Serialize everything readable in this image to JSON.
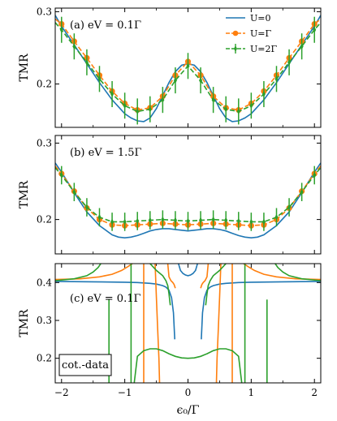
{
  "chart_data": [
    {
      "type": "line",
      "panel_label": "(a) eV = 0.1Γ",
      "ylabel": "TMR",
      "xlim": [
        -2.1,
        2.1
      ],
      "ylim": [
        0.14,
        0.305
      ],
      "yticks": [
        0.2,
        0.3
      ],
      "xticks": [
        -2,
        -1,
        0,
        1,
        2
      ],
      "legend": {
        "placement": "top-right"
      },
      "series": [
        {
          "name": "U=0",
          "color": "#1f77b4",
          "style": "solid",
          "x": [
            -2.1,
            -2.0,
            -1.8,
            -1.6,
            -1.4,
            -1.2,
            -1.0,
            -0.9,
            -0.8,
            -0.7,
            -0.6,
            -0.5,
            -0.4,
            -0.3,
            -0.2,
            -0.1,
            0.0,
            0.1,
            0.2,
            0.3,
            0.4,
            0.5,
            0.6,
            0.7,
            0.8,
            0.9,
            1.0,
            1.2,
            1.4,
            1.6,
            1.8,
            2.0,
            2.1
          ],
          "y": [
            0.295,
            0.28,
            0.254,
            0.228,
            0.202,
            0.178,
            0.159,
            0.153,
            0.149,
            0.148,
            0.153,
            0.166,
            0.184,
            0.202,
            0.217,
            0.226,
            0.228,
            0.226,
            0.217,
            0.202,
            0.184,
            0.166,
            0.153,
            0.148,
            0.149,
            0.153,
            0.159,
            0.178,
            0.202,
            0.228,
            0.254,
            0.28,
            0.295
          ]
        },
        {
          "name": "U=Γ",
          "color": "#ff7f0e",
          "style": "dashed",
          "marker": "circle",
          "x": [
            -2.1,
            -2.0,
            -1.8,
            -1.6,
            -1.4,
            -1.2,
            -1.0,
            -0.8,
            -0.6,
            -0.4,
            -0.2,
            0.0,
            0.2,
            0.4,
            0.6,
            0.8,
            1.0,
            1.2,
            1.4,
            1.6,
            1.8,
            2.0,
            2.1
          ],
          "y": [
            0.29,
            0.283,
            0.259,
            0.236,
            0.212,
            0.19,
            0.173,
            0.164,
            0.167,
            0.183,
            0.212,
            0.231,
            0.212,
            0.183,
            0.167,
            0.164,
            0.173,
            0.19,
            0.212,
            0.236,
            0.259,
            0.283,
            0.29
          ],
          "markers_x": [
            -2.0,
            -1.8,
            -1.6,
            -1.4,
            -1.2,
            -1.0,
            -0.8,
            -0.6,
            -0.4,
            -0.2,
            0.0,
            0.2,
            0.4,
            0.6,
            0.8,
            1.0,
            1.2,
            1.4,
            1.6,
            1.8,
            2.0
          ],
          "err": 0.004
        },
        {
          "name": "U=2Γ",
          "color": "#2ca02c",
          "style": "dashed",
          "marker": "plus",
          "x": [
            -2.1,
            -2.0,
            -1.8,
            -1.6,
            -1.4,
            -1.2,
            -1.0,
            -0.8,
            -0.6,
            -0.4,
            -0.2,
            0.0,
            0.2,
            0.4,
            0.6,
            0.8,
            1.0,
            1.2,
            1.4,
            1.6,
            1.8,
            2.0,
            2.1
          ],
          "y": [
            0.285,
            0.275,
            0.252,
            0.23,
            0.207,
            0.186,
            0.17,
            0.162,
            0.165,
            0.178,
            0.205,
            0.225,
            0.205,
            0.178,
            0.165,
            0.162,
            0.17,
            0.186,
            0.207,
            0.23,
            0.252,
            0.275,
            0.285
          ],
          "markers_x": [
            -2.0,
            -1.8,
            -1.6,
            -1.4,
            -1.2,
            -1.0,
            -0.8,
            -0.6,
            -0.4,
            -0.2,
            0.0,
            0.2,
            0.4,
            0.6,
            0.8,
            1.0,
            1.2,
            1.4,
            1.6,
            1.8,
            2.0
          ],
          "err": 0.018
        }
      ]
    },
    {
      "type": "line",
      "panel_label": "(b) eV = 1.5Γ",
      "ylabel": "TMR",
      "xlim": [
        -2.1,
        2.1
      ],
      "ylim": [
        0.155,
        0.31
      ],
      "yticks": [
        0.2,
        0.3
      ],
      "xticks": [
        -2,
        -1,
        0,
        1,
        2
      ],
      "series": [
        {
          "name": "U=0",
          "color": "#1f77b4",
          "style": "solid",
          "x": [
            -2.1,
            -2.0,
            -1.8,
            -1.6,
            -1.4,
            -1.2,
            -1.1,
            -1.0,
            -0.9,
            -0.8,
            -0.7,
            -0.6,
            -0.5,
            -0.4,
            -0.3,
            -0.2,
            -0.1,
            0.0,
            0.1,
            0.2,
            0.3,
            0.4,
            0.5,
            0.6,
            0.7,
            0.8,
            0.9,
            1.0,
            1.1,
            1.2,
            1.4,
            1.6,
            1.8,
            2.0,
            2.1
          ],
          "y": [
            0.274,
            0.262,
            0.235,
            0.21,
            0.192,
            0.18,
            0.177,
            0.176,
            0.177,
            0.179,
            0.182,
            0.185,
            0.187,
            0.188,
            0.188,
            0.187,
            0.186,
            0.185,
            0.186,
            0.187,
            0.188,
            0.188,
            0.187,
            0.185,
            0.182,
            0.179,
            0.177,
            0.176,
            0.177,
            0.18,
            0.192,
            0.21,
            0.235,
            0.262,
            0.274
          ]
        },
        {
          "name": "U=Γ",
          "color": "#ff7f0e",
          "style": "dashed",
          "marker": "circle",
          "x": [
            -2.1,
            -2.0,
            -1.8,
            -1.6,
            -1.4,
            -1.2,
            -1.0,
            -0.8,
            -0.6,
            -0.4,
            -0.2,
            0.0,
            0.2,
            0.4,
            0.6,
            0.8,
            1.0,
            1.2,
            1.4,
            1.6,
            1.8,
            2.0,
            2.1
          ],
          "y": [
            0.27,
            0.26,
            0.237,
            0.215,
            0.2,
            0.193,
            0.192,
            0.193,
            0.194,
            0.195,
            0.194,
            0.193,
            0.194,
            0.195,
            0.194,
            0.193,
            0.192,
            0.193,
            0.2,
            0.215,
            0.237,
            0.26,
            0.27
          ],
          "markers_x": [
            -2.0,
            -1.8,
            -1.6,
            -1.4,
            -1.2,
            -1.0,
            -0.8,
            -0.6,
            -0.4,
            -0.2,
            0.0,
            0.2,
            0.4,
            0.6,
            0.8,
            1.0,
            1.2,
            1.4,
            1.6,
            1.8,
            2.0
          ],
          "err": 0.004
        },
        {
          "name": "U=2Γ",
          "color": "#2ca02c",
          "style": "dashed",
          "marker": "plus",
          "x": [
            -2.1,
            -2.0,
            -1.8,
            -1.6,
            -1.4,
            -1.2,
            -1.0,
            -0.8,
            -0.6,
            -0.4,
            -0.2,
            0.0,
            0.2,
            0.4,
            0.6,
            0.8,
            1.0,
            1.2,
            1.4,
            1.6,
            1.8,
            2.0,
            2.1
          ],
          "y": [
            0.268,
            0.258,
            0.236,
            0.216,
            0.203,
            0.197,
            0.197,
            0.198,
            0.199,
            0.2,
            0.199,
            0.198,
            0.199,
            0.2,
            0.199,
            0.198,
            0.197,
            0.197,
            0.203,
            0.216,
            0.236,
            0.258,
            0.268
          ],
          "markers_x": [
            -2.0,
            -1.8,
            -1.6,
            -1.4,
            -1.2,
            -1.0,
            -0.8,
            -0.6,
            -0.4,
            -0.2,
            0.0,
            0.2,
            0.4,
            0.6,
            0.8,
            1.0,
            1.2,
            1.4,
            1.6,
            1.8,
            2.0
          ],
          "err": 0.012
        }
      ]
    },
    {
      "type": "line",
      "panel_label": "(c) eV = 0.1Γ",
      "ylabel": "TMR",
      "xlabel": "ϵ₀/Γ",
      "box_label": "cot.-data",
      "xlim": [
        -2.1,
        2.1
      ],
      "ylim": [
        0.135,
        0.45
      ],
      "yticks": [
        0.2,
        0.3,
        0.4
      ],
      "xticks": [
        -2,
        -1,
        0,
        1,
        2
      ],
      "series": [
        {
          "name": "U=0",
          "color": "#1f77b4",
          "style": "solid",
          "x": [
            -2.1,
            -1.5,
            -1.0,
            -0.8,
            -0.6,
            -0.5,
            -0.4,
            -0.35,
            -0.3,
            -0.26,
            -0.23,
            -0.21
          ],
          "y": [
            0.403,
            0.402,
            0.401,
            0.4,
            0.398,
            0.396,
            0.392,
            0.388,
            0.38,
            0.36,
            0.32,
            0.25
          ]
        },
        {
          "name": "U=0",
          "color": "#1f77b4",
          "style": "solid",
          "x": [
            -0.15,
            -0.12,
            -0.08,
            -0.04,
            0.0,
            0.04,
            0.08,
            0.12,
            0.15
          ],
          "y": [
            0.45,
            0.432,
            0.424,
            0.42,
            0.418,
            0.42,
            0.424,
            0.432,
            0.45
          ]
        },
        {
          "name": "U=0",
          "color": "#1f77b4",
          "style": "solid",
          "x": [
            0.21,
            0.23,
            0.26,
            0.3,
            0.35,
            0.4,
            0.5,
            0.6,
            0.8,
            1.0,
            1.5,
            2.1
          ],
          "y": [
            0.25,
            0.32,
            0.36,
            0.38,
            0.388,
            0.392,
            0.396,
            0.398,
            0.4,
            0.401,
            0.402,
            0.403
          ]
        },
        {
          "name": "U=Γ",
          "color": "#ff7f0e",
          "style": "solid",
          "x": [
            -2.1,
            -1.7,
            -1.4,
            -1.2,
            -1.05,
            -0.95,
            -0.88
          ],
          "y": [
            0.408,
            0.41,
            0.415,
            0.422,
            0.432,
            0.442,
            0.45
          ]
        },
        {
          "name": "U=Γ",
          "color": "#ff7f0e",
          "style": "solid",
          "x": [
            -0.7,
            -0.7
          ],
          "y": [
            0.45,
            0.135
          ]
        },
        {
          "name": "U=Γ",
          "color": "#ff7f0e",
          "style": "solid",
          "x": [
            -0.52,
            -0.5,
            -0.48,
            -0.46,
            -0.45
          ],
          "y": [
            0.45,
            0.36,
            0.28,
            0.2,
            0.135
          ]
        },
        {
          "name": "U=Γ",
          "color": "#ff7f0e",
          "style": "solid",
          "x": [
            -0.32,
            -0.3,
            -0.27,
            -0.24,
            -0.22,
            -0.2
          ],
          "y": [
            0.45,
            0.415,
            0.405,
            0.4,
            0.395,
            0.385
          ]
        },
        {
          "name": "U=Γ",
          "color": "#ff7f0e",
          "style": "solid",
          "x": [
            0.2,
            0.22,
            0.24,
            0.27,
            0.3,
            0.32
          ],
          "y": [
            0.385,
            0.395,
            0.4,
            0.405,
            0.415,
            0.45
          ]
        },
        {
          "name": "U=Γ",
          "color": "#ff7f0e",
          "style": "solid",
          "x": [
            0.45,
            0.46,
            0.48,
            0.5,
            0.52
          ],
          "y": [
            0.135,
            0.2,
            0.28,
            0.36,
            0.45
          ]
        },
        {
          "name": "U=Γ",
          "color": "#ff7f0e",
          "style": "solid",
          "x": [
            0.7,
            0.7
          ],
          "y": [
            0.135,
            0.45
          ]
        },
        {
          "name": "U=Γ",
          "color": "#ff7f0e",
          "style": "solid",
          "x": [
            0.88,
            0.95,
            1.05,
            1.2,
            1.4,
            1.7,
            2.1
          ],
          "y": [
            0.45,
            0.442,
            0.432,
            0.422,
            0.415,
            0.41,
            0.408
          ]
        },
        {
          "name": "U=2Γ",
          "color": "#2ca02c",
          "style": "solid",
          "x": [
            -2.1,
            -1.8,
            -1.6,
            -1.5,
            -1.42,
            -1.38
          ],
          "y": [
            0.405,
            0.41,
            0.418,
            0.428,
            0.44,
            0.45
          ]
        },
        {
          "name": "U=2Γ",
          "color": "#2ca02c",
          "style": "solid",
          "x": [
            -1.25,
            -1.25
          ],
          "y": [
            0.135,
            0.355
          ]
        },
        {
          "name": "U=2Γ",
          "color": "#2ca02c",
          "style": "solid",
          "x": [
            -0.9,
            -0.9
          ],
          "y": [
            0.45,
            0.135
          ]
        },
        {
          "name": "U=2Γ",
          "color": "#2ca02c",
          "style": "solid",
          "x": [
            -0.85,
            -0.8,
            -0.7,
            -0.6,
            -0.5,
            -0.4,
            -0.3,
            -0.2,
            -0.1,
            0.0,
            0.1,
            0.2,
            0.3,
            0.4,
            0.5,
            0.6,
            0.7,
            0.8,
            0.85
          ],
          "y": [
            0.135,
            0.205,
            0.22,
            0.225,
            0.225,
            0.22,
            0.212,
            0.205,
            0.201,
            0.2,
            0.201,
            0.205,
            0.212,
            0.22,
            0.225,
            0.225,
            0.22,
            0.205,
            0.135
          ]
        },
        {
          "name": "U=2Γ",
          "color": "#2ca02c",
          "style": "solid",
          "x": [
            -0.6,
            -0.5,
            -0.4,
            -0.35,
            -0.32,
            -0.3,
            -0.28
          ],
          "y": [
            0.45,
            0.432,
            0.418,
            0.405,
            0.392,
            0.37,
            0.34
          ]
        },
        {
          "name": "U=2Γ",
          "color": "#2ca02c",
          "style": "solid",
          "x": [
            0.28,
            0.3,
            0.32,
            0.35,
            0.4,
            0.5,
            0.6
          ],
          "y": [
            0.34,
            0.37,
            0.392,
            0.405,
            0.418,
            0.432,
            0.45
          ]
        },
        {
          "name": "U=2Γ",
          "color": "#2ca02c",
          "style": "solid",
          "x": [
            0.9,
            0.9
          ],
          "y": [
            0.135,
            0.45
          ]
        },
        {
          "name": "U=2Γ",
          "color": "#2ca02c",
          "style": "solid",
          "x": [
            1.25,
            1.25
          ],
          "y": [
            0.355,
            0.135
          ]
        },
        {
          "name": "U=2Γ",
          "color": "#2ca02c",
          "style": "solid",
          "x": [
            1.38,
            1.42,
            1.5,
            1.6,
            1.8,
            2.1
          ],
          "y": [
            0.45,
            0.44,
            0.428,
            0.418,
            0.41,
            0.405
          ]
        }
      ]
    }
  ]
}
